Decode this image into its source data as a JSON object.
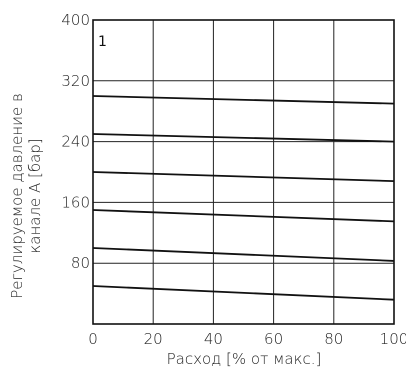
{
  "chart_data": {
    "type": "line",
    "panel_label": "1",
    "xlabel": "Расход [% от макс.]",
    "ylabel": [
      "Регулируемое давление в",
      "канале А [бар]"
    ],
    "xlim": [
      0,
      100
    ],
    "ylim": [
      0,
      400
    ],
    "x_ticks": [
      0,
      20,
      40,
      60,
      80,
      100
    ],
    "y_ticks": [
      80,
      160,
      240,
      320,
      400
    ],
    "grid": true,
    "series": [
      {
        "x": [
          0,
          100
        ],
        "values": [
          300,
          290
        ]
      },
      {
        "x": [
          0,
          100
        ],
        "values": [
          250,
          240
        ]
      },
      {
        "x": [
          0,
          100
        ],
        "values": [
          200,
          188
        ]
      },
      {
        "x": [
          0,
          100
        ],
        "values": [
          150,
          135
        ]
      },
      {
        "x": [
          0,
          100
        ],
        "values": [
          100,
          83
        ]
      },
      {
        "x": [
          0,
          100
        ],
        "values": [
          50,
          32
        ]
      }
    ]
  }
}
